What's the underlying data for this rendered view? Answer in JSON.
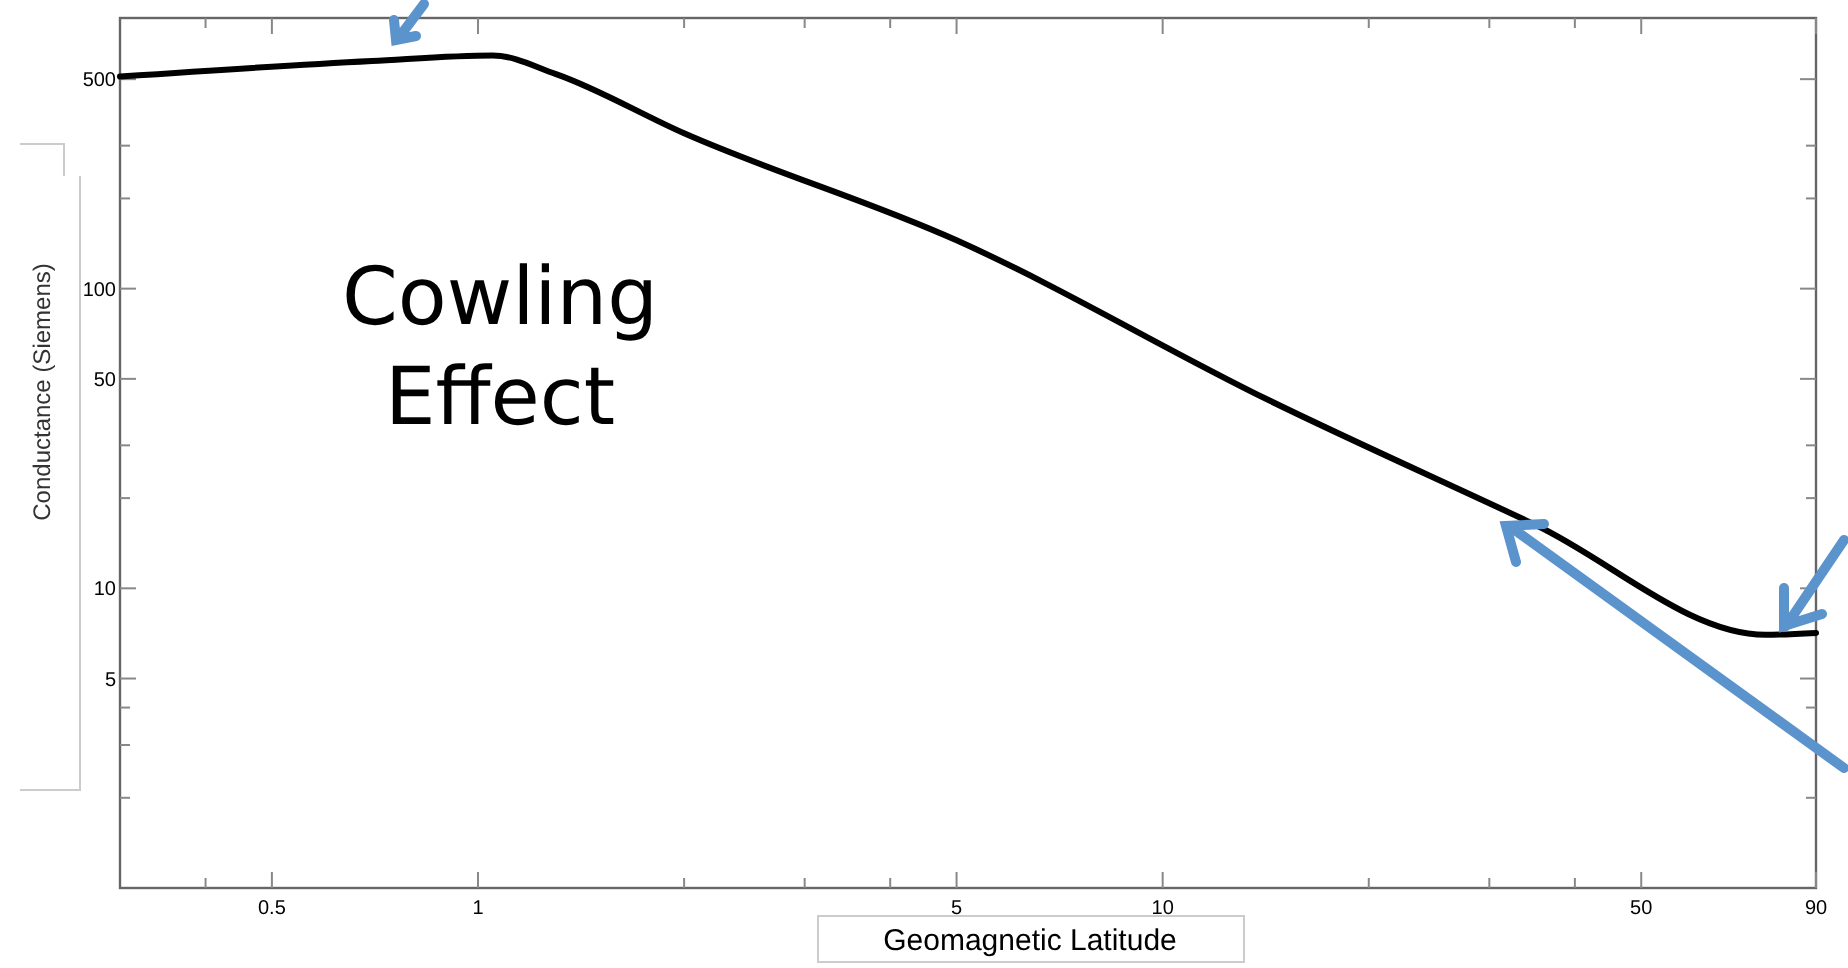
{
  "chart_data": {
    "type": "line",
    "xlabel": "Geomagnetic Latitude",
    "ylabel": "Conductance (Siemens)",
    "log": "xy",
    "grid": false,
    "x": [
      0.3,
      0.7,
      1.05,
      1.3,
      2,
      5,
      14.3,
      35,
      76,
      90
    ],
    "series": [
      {
        "color": "#000000",
        "values": [
          510,
          575,
          600,
          520,
          330,
          145,
          42.4,
          16.3,
          7.0,
          7.1
        ]
      }
    ],
    "xlim": [
      0.3,
      90
    ],
    "ylim": [
      1,
      800
    ],
    "xticks": [
      {
        "value": 0.4,
        "label": null
      },
      0.5,
      1,
      {
        "value": 2,
        "label": null
      },
      {
        "value": 3,
        "label": null
      },
      {
        "value": 4,
        "label": null
      },
      5,
      10,
      {
        "value": 20,
        "label": null
      },
      {
        "value": 30,
        "label": null
      },
      {
        "value": 40,
        "label": null
      },
      50,
      90
    ],
    "yticks": [
      {
        "value": 2,
        "label": null
      },
      {
        "value": 3,
        "label": null
      },
      {
        "value": 4,
        "label": null
      },
      5,
      10,
      {
        "value": 20,
        "label": null
      },
      {
        "value": 30,
        "label": null
      },
      50,
      100,
      {
        "value": 200,
        "label": null
      },
      {
        "value": 300,
        "label": null
      },
      500
    ],
    "annotations": [
      "Cowling Effect"
    ]
  }
}
